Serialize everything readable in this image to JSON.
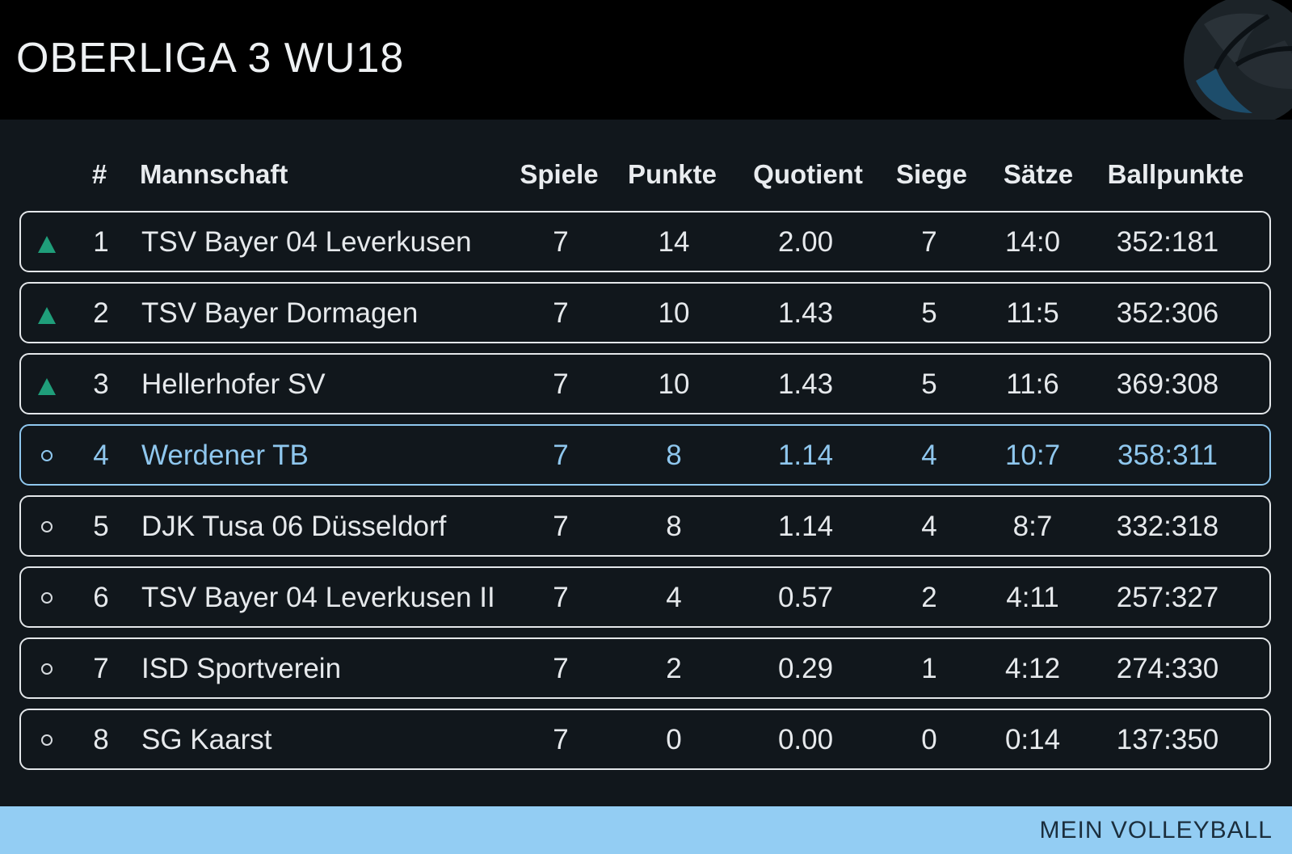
{
  "header": {
    "title": "OBERLIGA 3 WU18",
    "logo_icon": "volleyball-icon"
  },
  "columns": {
    "rank": "#",
    "team": "Mannschaft",
    "games": "Spiele",
    "points": "Punkte",
    "quotient": "Quotient",
    "wins": "Siege",
    "sets": "Sätze",
    "ballpoints": "Ballpunkte"
  },
  "rows": [
    {
      "marker": "up",
      "rank": "1",
      "team": "TSV Bayer 04 Leverkusen",
      "games": "7",
      "points": "14",
      "quotient": "2.00",
      "wins": "7",
      "sets": "14:0",
      "ballpoints": "352:181",
      "highlight": false
    },
    {
      "marker": "up",
      "rank": "2",
      "team": "TSV Bayer Dormagen",
      "games": "7",
      "points": "10",
      "quotient": "1.43",
      "wins": "5",
      "sets": "11:5",
      "ballpoints": "352:306",
      "highlight": false
    },
    {
      "marker": "up",
      "rank": "3",
      "team": "Hellerhofer SV",
      "games": "7",
      "points": "10",
      "quotient": "1.43",
      "wins": "5",
      "sets": "11:6",
      "ballpoints": "369:308",
      "highlight": false
    },
    {
      "marker": "circle",
      "rank": "4",
      "team": "Werdener TB",
      "games": "7",
      "points": "8",
      "quotient": "1.14",
      "wins": "4",
      "sets": "10:7",
      "ballpoints": "358:311",
      "highlight": true
    },
    {
      "marker": "circle",
      "rank": "5",
      "team": "DJK Tusa 06 Düsseldorf",
      "games": "7",
      "points": "8",
      "quotient": "1.14",
      "wins": "4",
      "sets": "8:7",
      "ballpoints": "332:318",
      "highlight": false
    },
    {
      "marker": "circle",
      "rank": "6",
      "team": "TSV Bayer 04 Leverkusen II",
      "games": "7",
      "points": "4",
      "quotient": "0.57",
      "wins": "2",
      "sets": "4:11",
      "ballpoints": "257:327",
      "highlight": false
    },
    {
      "marker": "circle",
      "rank": "7",
      "team": "ISD Sportverein",
      "games": "7",
      "points": "2",
      "quotient": "0.29",
      "wins": "1",
      "sets": "4:12",
      "ballpoints": "274:330",
      "highlight": false
    },
    {
      "marker": "circle",
      "rank": "8",
      "team": "SG Kaarst",
      "games": "7",
      "points": "0",
      "quotient": "0.00",
      "wins": "0",
      "sets": "0:14",
      "ballpoints": "137:350",
      "highlight": false
    }
  ],
  "colors": {
    "background": "#11171c",
    "header_background": "#000000",
    "promotion_marker": "#1f9e7a",
    "highlight": "#8fc7ee",
    "footer_background": "#93cdf3"
  },
  "footer": {
    "brand": "MEIN VOLLEYBALL"
  }
}
